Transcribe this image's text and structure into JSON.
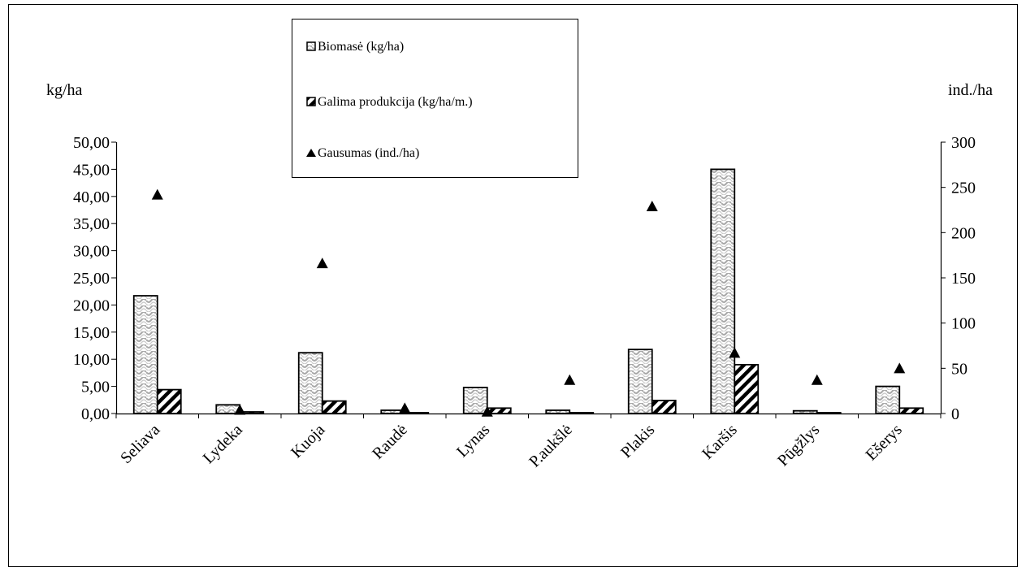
{
  "chart_data": {
    "type": "bar",
    "categories": [
      "Seliava",
      "Lydeka",
      "Kuoja",
      "Raudė",
      "Lynas",
      "P.aukšlė",
      "Plakis",
      "Karšis",
      "Pūgžlys",
      "Ešerys"
    ],
    "series": [
      {
        "name": "Biomasė (kg/ha)",
        "axis": "left",
        "kind": "bar",
        "pattern": "wave",
        "values": [
          21.7,
          1.6,
          11.2,
          0.6,
          4.8,
          0.6,
          11.8,
          45.0,
          0.5,
          5.0
        ]
      },
      {
        "name": "Galima produkcija (kg/ha/m.)",
        "axis": "left",
        "kind": "bar",
        "pattern": "diagonal",
        "values": [
          4.4,
          0.3,
          2.3,
          0.1,
          1.0,
          0.1,
          2.4,
          9.0,
          0.1,
          1.0
        ]
      },
      {
        "name": "Gausumas (ind./ha)",
        "axis": "right",
        "kind": "marker",
        "marker": "triangle",
        "values": [
          242,
          4,
          166,
          6,
          2,
          37,
          229,
          67,
          37,
          50
        ]
      }
    ],
    "left_axis": {
      "unit_label": "kg/ha",
      "min": 0,
      "max": 50,
      "step": 5,
      "ticks": [
        "0,00",
        "5,00",
        "10,00",
        "15,00",
        "20,00",
        "25,00",
        "30,00",
        "35,00",
        "40,00",
        "45,00",
        "50,00"
      ]
    },
    "right_axis": {
      "unit_label": "ind./ha",
      "min": 0,
      "max": 300,
      "step": 50,
      "ticks": [
        "0",
        "50",
        "100",
        "150",
        "200",
        "250",
        "300"
      ]
    },
    "legend": {
      "placement": "top-center-overlapping"
    },
    "grid": false,
    "colors": {
      "bar_fill": "#ffffff",
      "bar_outline": "#000000",
      "marker": "#000000",
      "wave": "#a8a8a8"
    }
  }
}
